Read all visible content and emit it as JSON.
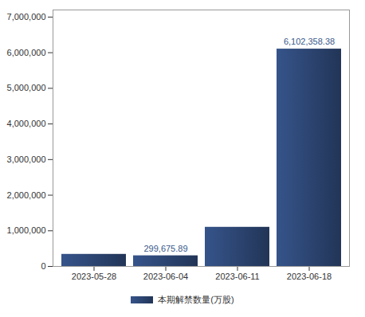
{
  "chart_data": {
    "type": "bar",
    "categories": [
      "2023-05-28",
      "2023-06-04",
      "2023-06-11",
      "2023-06-18"
    ],
    "series": [
      {
        "name": "本期解禁数量(万股)",
        "color": "#2c4470",
        "values": [
          340000,
          299675.89,
          1100000,
          6102358.38
        ],
        "value_labels": [
          null,
          "299,675.89",
          null,
          "6,102,358.38"
        ]
      }
    ],
    "ylim": [
      0,
      7200000
    ],
    "yticks": [
      0,
      {
        "value": 1000000,
        "label": "1,000,000"
      },
      {
        "value": 2000000,
        "label": "2,000,000"
      },
      {
        "value": 3000000,
        "label": "3,000,000"
      },
      {
        "value": 4000000,
        "label": "4,000,000"
      },
      {
        "value": 5000000,
        "label": "5,000,000"
      },
      {
        "value": 6000000,
        "label": "6,000,000"
      },
      {
        "value": 7000000,
        "label": "7,000,000"
      }
    ],
    "grid": false,
    "legend": "bottom",
    "data_labels": true
  }
}
